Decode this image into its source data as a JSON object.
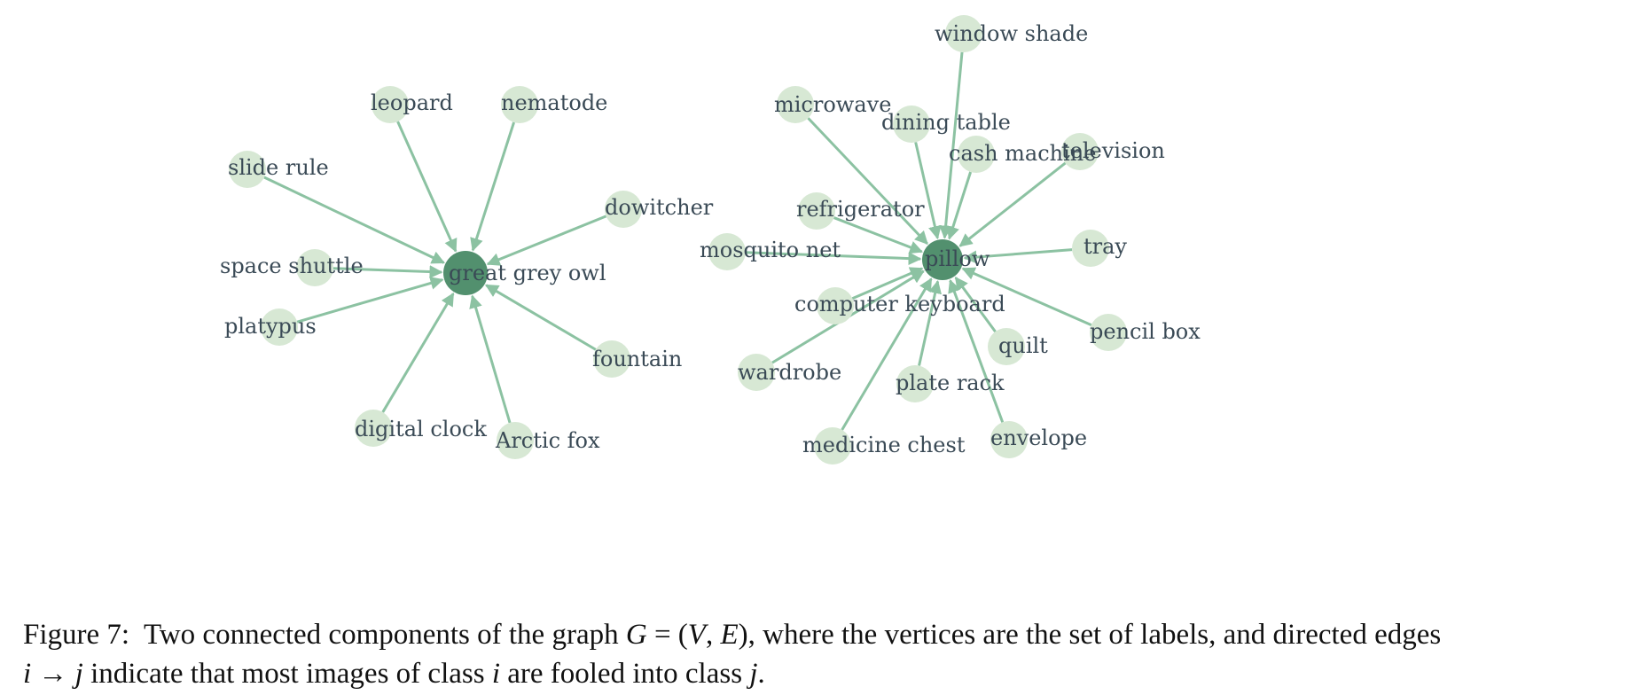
{
  "figure": {
    "components": [
      {
        "hub": "great grey owl",
        "leaves": [
          "leopard",
          "nematode",
          "slide rule",
          "dowitcher",
          "space shuttle",
          "platypus",
          "fountain",
          "digital clock",
          "Arctic fox"
        ]
      },
      {
        "hub": "pillow",
        "leaves": [
          "window shade",
          "microwave",
          "dining table",
          "cash machine",
          "television",
          "refrigerator",
          "mosquito net",
          "tray",
          "computer keyboard",
          "quilt",
          "pencil box",
          "wardrobe",
          "plate rack",
          "envelope",
          "medicine chest"
        ]
      }
    ],
    "colors": {
      "hub": "#52906e",
      "leaf": "#d7e8d4",
      "edge": "#8cc2a2",
      "label": "#3a4a56"
    }
  },
  "caption": {
    "label": "Figure 7:",
    "line1_text": "Two connected components of the graph",
    "math_G": "G",
    "math_eq": " = (",
    "math_V": "V",
    "math_comma": ", ",
    "math_E": "E",
    "math_close": ")",
    "line1_rest": ", where the vertices are the set of labels, and directed edges",
    "math_i": "i",
    "math_arrow": " → ",
    "math_j": "j",
    "line2_text": " indicate that most images of class ",
    "math_i2": "i",
    "line2_mid": " are fooled into class ",
    "math_j2": "j",
    "line2_end": "."
  }
}
